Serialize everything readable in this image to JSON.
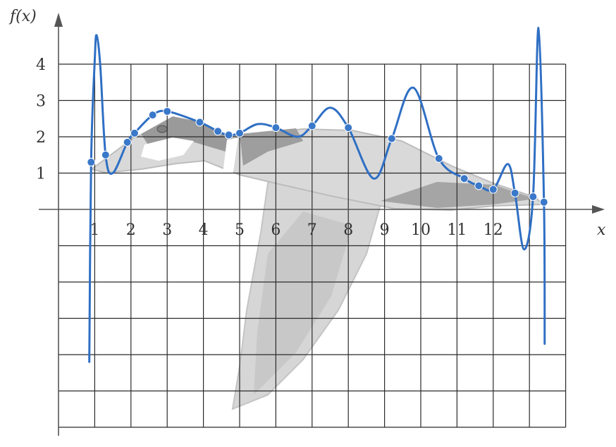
{
  "colors": {
    "curve": "#2f6fc4",
    "point": "#3a78c9",
    "grid": "#2b2b2b",
    "axis": "#555555",
    "bird_light": "#dadada",
    "bird_mid": "#b3b3b3",
    "bird_dark": "#8e8e8e"
  },
  "chart_data": {
    "type": "line",
    "title": "",
    "xlabel": "x",
    "ylabel": "f(x)",
    "xlim": [
      -1,
      14
    ],
    "ylim": [
      -6,
      4
    ],
    "grid": true,
    "x_ticks": [
      1,
      2,
      3,
      4,
      5,
      6,
      7,
      8,
      9,
      10,
      11,
      12
    ],
    "y_ticks": [
      1,
      2,
      3,
      4
    ],
    "points": [
      {
        "x": 0.9,
        "y": 1.3
      },
      {
        "x": 1.3,
        "y": 1.5
      },
      {
        "x": 1.9,
        "y": 1.85
      },
      {
        "x": 2.1,
        "y": 2.1
      },
      {
        "x": 2.6,
        "y": 2.6
      },
      {
        "x": 3.0,
        "y": 2.7
      },
      {
        "x": 3.9,
        "y": 2.4
      },
      {
        "x": 4.4,
        "y": 2.15
      },
      {
        "x": 4.7,
        "y": 2.05
      },
      {
        "x": 5.0,
        "y": 2.1
      },
      {
        "x": 6.0,
        "y": 2.25
      },
      {
        "x": 7.0,
        "y": 2.3
      },
      {
        "x": 8.0,
        "y": 2.25
      },
      {
        "x": 9.2,
        "y": 1.95
      },
      {
        "x": 10.5,
        "y": 1.4
      },
      {
        "x": 11.2,
        "y": 0.85
      },
      {
        "x": 11.6,
        "y": 0.65
      },
      {
        "x": 12.0,
        "y": 0.55
      },
      {
        "x": 12.6,
        "y": 0.45
      },
      {
        "x": 13.1,
        "y": 0.35
      },
      {
        "x": 13.4,
        "y": 0.2
      }
    ],
    "curve": [
      [
        0.85,
        -4.2
      ],
      [
        0.9,
        1.3
      ],
      [
        1.0,
        4.1
      ],
      [
        1.05,
        4.8
      ],
      [
        1.15,
        4.0
      ],
      [
        1.3,
        1.5
      ],
      [
        1.5,
        1.0
      ],
      [
        1.9,
        1.85
      ],
      [
        2.1,
        2.1
      ],
      [
        2.6,
        2.6
      ],
      [
        3.0,
        2.7
      ],
      [
        3.9,
        2.4
      ],
      [
        4.4,
        2.15
      ],
      [
        4.7,
        2.05
      ],
      [
        5.0,
        2.1
      ],
      [
        5.5,
        2.35
      ],
      [
        6.0,
        2.25
      ],
      [
        6.6,
        2.0
      ],
      [
        7.0,
        2.3
      ],
      [
        7.5,
        2.8
      ],
      [
        8.0,
        2.25
      ],
      [
        8.7,
        0.85
      ],
      [
        9.2,
        1.95
      ],
      [
        9.8,
        3.35
      ],
      [
        10.5,
        1.4
      ],
      [
        11.2,
        0.85
      ],
      [
        11.6,
        0.65
      ],
      [
        12.0,
        0.55
      ],
      [
        12.4,
        1.25
      ],
      [
        12.6,
        0.45
      ],
      [
        12.85,
        -1.1
      ],
      [
        13.1,
        0.35
      ],
      [
        13.25,
        5.0
      ],
      [
        13.4,
        0.2
      ],
      [
        13.42,
        -3.7
      ]
    ]
  }
}
